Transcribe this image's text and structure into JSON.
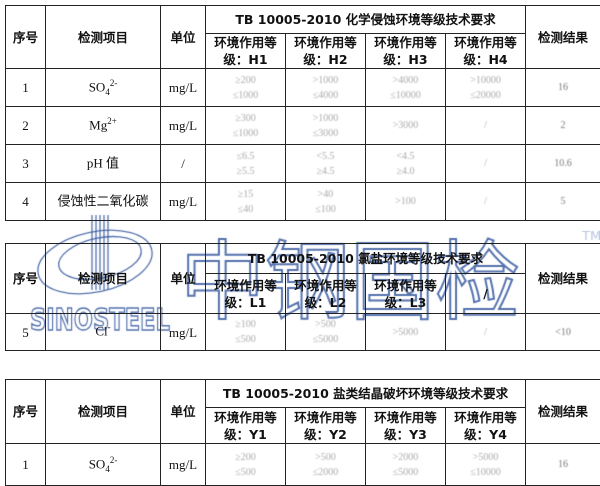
{
  "common": {
    "seq": "序号",
    "item": "检测项目",
    "unit": "单位",
    "result": "检测结果"
  },
  "t1": {
    "title": "TB 10005-2010 化学侵蚀环境等级技术要求",
    "levels": [
      "环境作用等级：H1",
      "环境作用等级：H2",
      "环境作用等级：H3",
      "环境作用等级：H4"
    ],
    "rows": [
      {
        "no": "1",
        "item": "SO",
        "sub": "4",
        "sup": "2-",
        "unit": "mg/L",
        "v": [
          [
            "≥200",
            "≤1000"
          ],
          [
            ">1000",
            "≤4000"
          ],
          [
            ">4000",
            "≤10000"
          ],
          [
            ">10000",
            "≤20000"
          ]
        ],
        "res": "16"
      },
      {
        "no": "2",
        "item": "Mg",
        "sub": "",
        "sup": "2+",
        "unit": "mg/L",
        "v": [
          [
            "≥300",
            "≤1000"
          ],
          [
            ">1000",
            "≤3000"
          ],
          [
            ">3000",
            ""
          ],
          [
            "/",
            ""
          ]
        ],
        "res": "2"
      },
      {
        "no": "3",
        "item": "pH 值",
        "sub": "",
        "sup": "",
        "unit": "/",
        "v": [
          [
            "≤6.5",
            "≥5.5"
          ],
          [
            "<5.5",
            "≥4.5"
          ],
          [
            "<4.5",
            "≥4.0"
          ],
          [
            "/",
            ""
          ]
        ],
        "res": "10.6"
      },
      {
        "no": "4",
        "item": "侵蚀性二氧化碳",
        "sub": "",
        "sup": "",
        "unit": "mg/L",
        "v": [
          [
            "≥15",
            "≤40"
          ],
          [
            ">40",
            "≤100"
          ],
          [
            ">100",
            ""
          ],
          [
            "/",
            ""
          ]
        ],
        "res": "5"
      }
    ]
  },
  "t2": {
    "title": "TB 10005-2010 氯盐环境等级技术要求",
    "levels": [
      "环境作用等级：L1",
      "环境作用等级：L2",
      "环境作用等级：L3",
      "/"
    ],
    "rows": [
      {
        "no": "5",
        "item": "Cl",
        "sup": "-",
        "unit": "mg/L",
        "v": [
          [
            "≥100",
            "≤500"
          ],
          [
            ">500",
            "≤5000"
          ],
          [
            ">5000",
            ""
          ],
          [
            "/",
            ""
          ]
        ],
        "res": "<10"
      }
    ]
  },
  "t3": {
    "title": "TB 10005-2010 盐类结晶破坏环境等级技术要求",
    "levels": [
      "环境作用等级：Y1",
      "环境作用等级：Y2",
      "环境作用等级：Y3",
      "环境作用等级：Y4"
    ],
    "rows": [
      {
        "no": "1",
        "item": "SO",
        "sub": "4",
        "sup": "2-",
        "unit": "mg/L",
        "v": [
          [
            "≥200",
            "≤500"
          ],
          [
            ">500",
            "≤2000"
          ],
          [
            ">2000",
            "≤5000"
          ],
          [
            ">5000",
            "≤10000"
          ]
        ],
        "res": "16"
      }
    ]
  },
  "watermark": {
    "brand": "SINOSTEEL",
    "cn": "中钢国检",
    "tm": "TM",
    "color": "#2a4f9a"
  }
}
